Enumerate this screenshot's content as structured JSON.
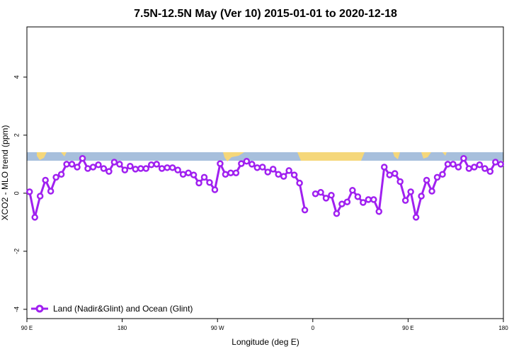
{
  "chart_data": {
    "type": "line",
    "title": "7.5N-12.5N May (Ver 10)   2015-01-01 to 2020-12-18",
    "x_label": "Longitude (deg E)",
    "y_label": "XCO2 - MLO trend (ppm)",
    "xlim": [
      90,
      540
    ],
    "xticks": [
      {
        "value": 90,
        "label": "90 E"
      },
      {
        "value": 180,
        "label": "180"
      },
      {
        "value": 270,
        "label": "90 W"
      },
      {
        "value": 360,
        "label": "0"
      },
      {
        "value": 450,
        "label": "90 E"
      },
      {
        "value": 540,
        "label": "180"
      }
    ],
    "ylim": [
      -4.32,
      5.73
    ],
    "yticks": [
      -4,
      -2,
      0,
      2,
      4
    ],
    "legend": "bottom-left",
    "x": [
      92.5,
      97.5,
      102.5,
      107.5,
      112.5,
      117.5,
      122.5,
      127.5,
      132.5,
      137.5,
      142.5,
      147.5,
      152.5,
      157.5,
      162.5,
      167.5,
      172.5,
      177.5,
      182.5,
      187.5,
      192.5,
      197.5,
      202.5,
      207.5,
      212.5,
      217.5,
      222.5,
      227.5,
      232.5,
      237.5,
      242.5,
      247.5,
      252.5,
      257.5,
      262.5,
      267.5,
      272.5,
      277.5,
      282.5,
      287.5,
      292.5,
      297.5,
      302.5,
      307.5,
      312.5,
      317.5,
      322.5,
      327.5,
      332.5,
      337.5,
      342.5,
      347.5,
      352.5,
      357.5,
      362.5,
      367.5,
      372.5,
      377.5,
      382.5,
      387.5,
      392.5,
      397.5,
      402.5,
      407.5,
      412.5,
      417.5,
      422.5,
      427.5,
      432.5,
      437.5,
      442.5,
      447.5,
      452.5,
      457.5,
      462.5,
      467.5,
      472.5,
      477.5,
      482.5,
      487.5,
      492.5,
      497.5,
      502.5,
      507.5,
      512.5,
      517.5,
      522.5,
      527.5,
      532.5,
      537.5
    ],
    "series": [
      {
        "name": "Land (Nadir&Glint) and Ocean (Glint)",
        "color": "#a020f0",
        "values": [
          0.05,
          -0.83,
          -0.1,
          0.45,
          0.07,
          0.55,
          0.65,
          1.0,
          1.0,
          0.9,
          1.2,
          0.85,
          0.9,
          0.98,
          0.85,
          0.75,
          1.07,
          1.0,
          0.8,
          0.93,
          0.83,
          0.85,
          0.85,
          0.98,
          1.0,
          0.85,
          0.88,
          0.88,
          0.8,
          0.65,
          0.7,
          0.63,
          0.35,
          0.55,
          0.37,
          0.12,
          1.02,
          0.65,
          0.7,
          0.7,
          1.02,
          1.1,
          1.0,
          0.88,
          0.9,
          0.73,
          0.83,
          0.65,
          0.58,
          0.78,
          0.63,
          0.35,
          -0.58,
          null,
          -0.02,
          0.03,
          -0.17,
          -0.07,
          -0.7,
          -0.37,
          -0.3,
          0.1,
          -0.12,
          -0.32,
          -0.22,
          -0.22,
          -0.63,
          0.9,
          0.63,
          0.68,
          0.4,
          -0.25,
          0.05,
          -0.83,
          -0.1,
          0.45,
          0.07,
          0.55,
          0.65,
          1.0,
          1.0,
          0.9,
          1.2,
          0.85,
          0.9,
          0.98,
          0.85,
          0.75,
          1.07,
          1.0
        ]
      }
    ]
  }
}
